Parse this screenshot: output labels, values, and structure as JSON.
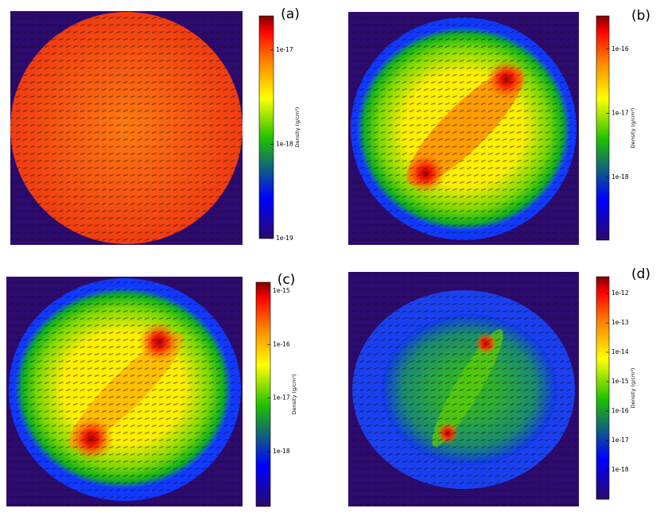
{
  "chart_data": [
    {
      "type": "heatmap",
      "panel_label": "(a)",
      "colorbar_label": "Density (g/cm³)",
      "colorbar_scale": "log",
      "clim": [
        1e-19,
        2.3e-17
      ],
      "cticks": [
        {
          "value": 1e-17,
          "label": "1e-17"
        },
        {
          "value": 1e-18,
          "label": "1e-18"
        },
        {
          "value": 1e-19,
          "label": "1e-19"
        }
      ]
    },
    {
      "type": "heatmap",
      "panel_label": "(b)",
      "colorbar_label": "Density (g/cm³)",
      "colorbar_scale": "log",
      "clim": [
        1.05e-19,
        3.3e-16
      ],
      "cticks": [
        {
          "value": 1e-16,
          "label": "1e-16"
        },
        {
          "value": 1e-17,
          "label": "1e-17"
        },
        {
          "value": 1e-18,
          "label": "1e-18"
        }
      ]
    },
    {
      "type": "heatmap",
      "panel_label": "(c)",
      "colorbar_label": "Density (g/cm³)",
      "colorbar_scale": "log",
      "clim": [
        9.5e-20,
        1.45e-15
      ],
      "cticks": [
        {
          "value": 1e-15,
          "label": "1e-15"
        },
        {
          "value": 1e-16,
          "label": "1e-16"
        },
        {
          "value": 1e-17,
          "label": "1e-17"
        },
        {
          "value": 1e-18,
          "label": "1e-18"
        }
      ]
    },
    {
      "type": "heatmap",
      "panel_label": "(d)",
      "colorbar_label": "Density (g/cm³)",
      "colorbar_scale": "log",
      "clim": [
        1e-19,
        3.7e-12
      ],
      "cticks": [
        {
          "value": 1e-12,
          "label": "1e-12"
        },
        {
          "value": 1e-13,
          "label": "1e-13"
        },
        {
          "value": 1e-14,
          "label": "1e-14"
        },
        {
          "value": 1e-15,
          "label": "1e-15"
        },
        {
          "value": 1e-16,
          "label": "1e-16"
        },
        {
          "value": 1e-17,
          "label": "1e-17"
        },
        {
          "value": 1e-18,
          "label": "1e-18"
        }
      ]
    }
  ]
}
